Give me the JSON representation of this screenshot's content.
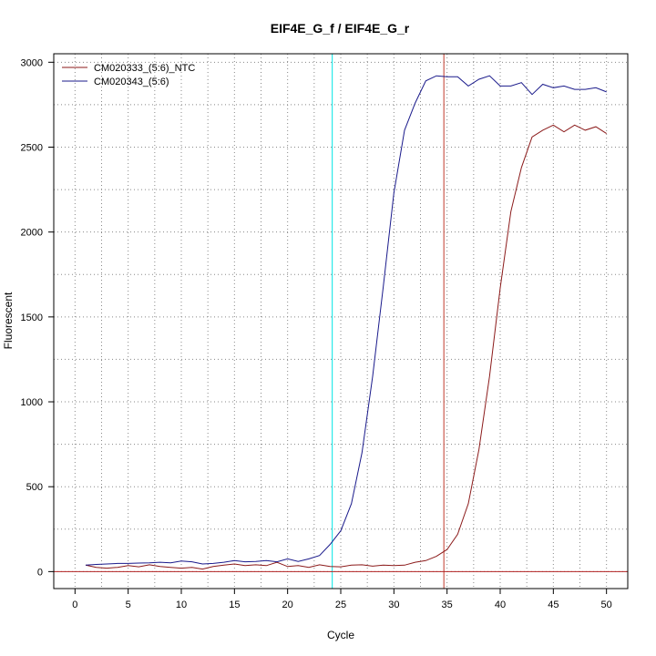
{
  "chart_data": {
    "type": "line",
    "title": "EIF4E_G_f / EIF4E_G_r",
    "xlabel": "Cycle",
    "ylabel": "Fluorescent",
    "xlim": [
      -2,
      52
    ],
    "ylim": [
      -100,
      3050
    ],
    "x_ticks": [
      0,
      5,
      10,
      15,
      20,
      25,
      30,
      35,
      40,
      45,
      50
    ],
    "y_ticks": [
      0,
      500,
      1000,
      1500,
      2000,
      2500,
      3000
    ],
    "x_ticks_minor": [
      2.5,
      7.5,
      12.5,
      17.5,
      22.5,
      27.5,
      32.5,
      37.5,
      42.5,
      47.5
    ],
    "y_ticks_minor": [
      250,
      750,
      1250,
      1750,
      2250,
      2750
    ],
    "grid": true,
    "legend_position": "top-left",
    "vlines": [
      {
        "x": 24.2,
        "color": "#00e5e5"
      },
      {
        "x": 34.7,
        "color": "#c0392b"
      }
    ],
    "hline": {
      "y": 0,
      "color": "#b22222"
    },
    "x": [
      1,
      2,
      3,
      4,
      5,
      6,
      7,
      8,
      9,
      10,
      11,
      12,
      13,
      14,
      15,
      16,
      17,
      18,
      19,
      20,
      21,
      22,
      23,
      24,
      25,
      26,
      27,
      28,
      29,
      30,
      31,
      32,
      33,
      34,
      35,
      36,
      37,
      38,
      39,
      40,
      41,
      42,
      43,
      44,
      45,
      46,
      47,
      48,
      49,
      50
    ],
    "series": [
      {
        "name": "CM020333_(5:6)_NTC",
        "color": "#8b1a1a",
        "values": [
          38,
          25,
          20,
          25,
          35,
          28,
          40,
          30,
          25,
          20,
          25,
          15,
          30,
          38,
          45,
          35,
          40,
          35,
          55,
          30,
          35,
          25,
          40,
          30,
          28,
          38,
          40,
          32,
          38,
          35,
          38,
          55,
          65,
          90,
          130,
          220,
          400,
          720,
          1150,
          1670,
          2120,
          2380,
          2560,
          2600,
          2630,
          2590,
          2630,
          2600,
          2620,
          2580
        ]
      },
      {
        "name": "CM020343_(5:6)",
        "color": "#1a1a8b",
        "values": [
          38,
          42,
          45,
          48,
          48,
          50,
          52,
          55,
          52,
          62,
          58,
          45,
          48,
          55,
          65,
          58,
          60,
          65,
          58,
          75,
          60,
          75,
          95,
          160,
          240,
          400,
          700,
          1150,
          1680,
          2230,
          2600,
          2760,
          2890,
          2920,
          2915,
          2915,
          2860,
          2900,
          2920,
          2860,
          2860,
          2880,
          2810,
          2870,
          2850,
          2860,
          2840,
          2840,
          2850,
          2825
        ]
      }
    ]
  }
}
